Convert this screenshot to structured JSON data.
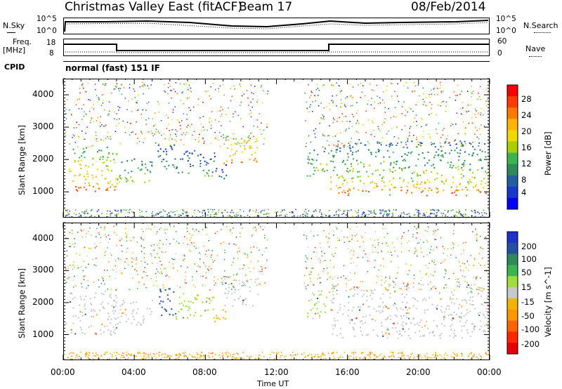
{
  "header": {
    "title_left": "Christmas Valley East (fitACF)",
    "title_beam": "Beam 17",
    "date": "08/Feb/2014"
  },
  "panels": {
    "nsky_label": "N.Sky",
    "nsky_ticks": [
      "10^5",
      "10^0"
    ],
    "nsearch_label": "N.Search",
    "nsearch_ticks": [
      "10^5",
      "10^0"
    ],
    "freq_label": "Freq.",
    "freq_unit": "[MHz]",
    "freq_ticks": [
      "18",
      "8"
    ],
    "nave_label": "Nave",
    "nave_ticks": [
      "60",
      "0"
    ],
    "cpid_label": "CPID",
    "mode_text": "normal (fast) 151 IF"
  },
  "power_colorbar": {
    "label": "Power [dB]",
    "ticks": [
      "28",
      "24",
      "20",
      "16",
      "12",
      "8",
      "4"
    ],
    "colors": [
      "#ff0000",
      "#ff3c00",
      "#ff7800",
      "#ffb400",
      "#f0d800",
      "#a8d000",
      "#3cb450",
      "#2e8b57",
      "#2060a0",
      "#1838c8",
      "#0000ff"
    ]
  },
  "velocity_colorbar": {
    "label": "Velocity [m s^-1]",
    "ticks": [
      "200",
      "100",
      "50",
      "15",
      "-15",
      "-50",
      "-100",
      "-200"
    ],
    "colors": [
      "#1e32c8",
      "#2450a0",
      "#2e8b57",
      "#3cb450",
      "#a0dc3c",
      "#c8c8c8",
      "#f0b400",
      "#ff9600",
      "#ff6400",
      "#ff2800",
      "#e60000"
    ]
  },
  "chart_data": {
    "type": "heatmap",
    "xlabel": "Time UT",
    "ylabel": "Slant Range [km]",
    "x_ticks": [
      "00:00",
      "04:00",
      "08:00",
      "12:00",
      "16:00",
      "20:00",
      "00:00"
    ],
    "y_ticks": [
      "1000",
      "2000",
      "3000",
      "4000"
    ],
    "ylim": [
      200,
      4500
    ],
    "xlim_hours": [
      0,
      24
    ],
    "freq_steps_mhz": [
      {
        "start": 0,
        "end": 3,
        "value": 16
      },
      {
        "start": 3,
        "end": 15,
        "value": 10
      },
      {
        "start": 15,
        "end": 24,
        "value": 16
      }
    ],
    "scatter_regions": [
      {
        "t0": 0.0,
        "t1": 3.0,
        "r0": 1000,
        "r1": 1400,
        "power": 28,
        "velocity": 0
      },
      {
        "t0": 0.3,
        "t1": 3.0,
        "r0": 1400,
        "r1": 2400,
        "power": 20,
        "velocity": 0
      },
      {
        "t0": 3.0,
        "t1": 5.0,
        "r0": 1300,
        "r1": 2100,
        "power": 16,
        "velocity": 0
      },
      {
        "t0": 5.3,
        "t1": 6.3,
        "r0": 1600,
        "r1": 2500,
        "power": 12,
        "velocity": 200
      },
      {
        "t0": 6.3,
        "t1": 8.5,
        "r0": 1500,
        "r1": 2300,
        "power": 12,
        "velocity": 50
      },
      {
        "t0": 8.5,
        "t1": 9.2,
        "r0": 1400,
        "r1": 1900,
        "power": 8,
        "velocity": -50
      },
      {
        "t0": 9.0,
        "t1": 11.0,
        "r0": 1900,
        "r1": 2800,
        "power": 24,
        "velocity": 0
      },
      {
        "t0": 13.7,
        "t1": 15.0,
        "r0": 1500,
        "r1": 2400,
        "power": 16,
        "velocity": 30
      },
      {
        "t0": 15.0,
        "t1": 24.0,
        "r0": 900,
        "r1": 1300,
        "power": 28,
        "velocity": 0
      },
      {
        "t0": 15.0,
        "t1": 24.0,
        "r0": 1300,
        "r1": 2600,
        "power": 16,
        "velocity": 0
      }
    ]
  }
}
